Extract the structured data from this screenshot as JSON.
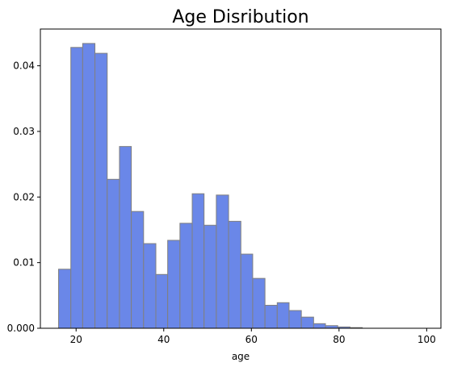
{
  "chart_data": {
    "type": "bar",
    "title": "Age Disribution",
    "xlabel": "age",
    "ylabel": "",
    "bar_color": "#6a87e8",
    "bar_edge_color": "#808080",
    "bins": [
      {
        "start": 16.0,
        "end": 18.8,
        "value": 0.009
      },
      {
        "start": 18.8,
        "end": 21.5,
        "value": 0.0428
      },
      {
        "start": 21.5,
        "end": 24.3,
        "value": 0.0434
      },
      {
        "start": 24.3,
        "end": 27.1,
        "value": 0.0419
      },
      {
        "start": 27.1,
        "end": 29.9,
        "value": 0.0227
      },
      {
        "start": 29.9,
        "end": 32.6,
        "value": 0.0277
      },
      {
        "start": 32.6,
        "end": 35.4,
        "value": 0.0178
      },
      {
        "start": 35.4,
        "end": 38.2,
        "value": 0.0129
      },
      {
        "start": 38.2,
        "end": 40.9,
        "value": 0.0082
      },
      {
        "start": 40.9,
        "end": 43.7,
        "value": 0.0134
      },
      {
        "start": 43.7,
        "end": 46.5,
        "value": 0.016
      },
      {
        "start": 46.5,
        "end": 49.2,
        "value": 0.0205
      },
      {
        "start": 49.2,
        "end": 52.0,
        "value": 0.0157
      },
      {
        "start": 52.0,
        "end": 54.8,
        "value": 0.0203
      },
      {
        "start": 54.8,
        "end": 57.6,
        "value": 0.0163
      },
      {
        "start": 57.6,
        "end": 60.3,
        "value": 0.0113
      },
      {
        "start": 60.3,
        "end": 63.1,
        "value": 0.0076
      },
      {
        "start": 63.1,
        "end": 65.9,
        "value": 0.0035
      },
      {
        "start": 65.9,
        "end": 68.6,
        "value": 0.0039
      },
      {
        "start": 68.6,
        "end": 71.4,
        "value": 0.0027
      },
      {
        "start": 71.4,
        "end": 74.2,
        "value": 0.0017
      },
      {
        "start": 74.2,
        "end": 76.9,
        "value": 0.0007
      },
      {
        "start": 76.9,
        "end": 79.7,
        "value": 0.0004
      },
      {
        "start": 79.7,
        "end": 82.5,
        "value": 0.0002
      },
      {
        "start": 82.5,
        "end": 85.3,
        "value": 0.0001
      },
      {
        "start": 85.3,
        "end": 88.0,
        "value": 0.0
      },
      {
        "start": 88.0,
        "end": 90.8,
        "value": 0.0
      },
      {
        "start": 90.8,
        "end": 93.6,
        "value": 0.0
      },
      {
        "start": 93.6,
        "end": 96.3,
        "value": 0.0
      },
      {
        "start": 96.3,
        "end": 99.1,
        "value": 0.0
      }
    ],
    "xlim": [
      11.85,
      103.25
    ],
    "ylim": [
      0,
      0.0456
    ],
    "xticks": [
      20,
      40,
      60,
      80,
      100
    ],
    "xtick_labels": [
      "20",
      "40",
      "60",
      "80",
      "100"
    ],
    "yticks": [
      0.0,
      0.01,
      0.02,
      0.03,
      0.04
    ],
    "ytick_labels": [
      "0.000",
      "0.01",
      "0.02",
      "0.03",
      "0.04"
    ],
    "grid": false,
    "legend": "none"
  }
}
